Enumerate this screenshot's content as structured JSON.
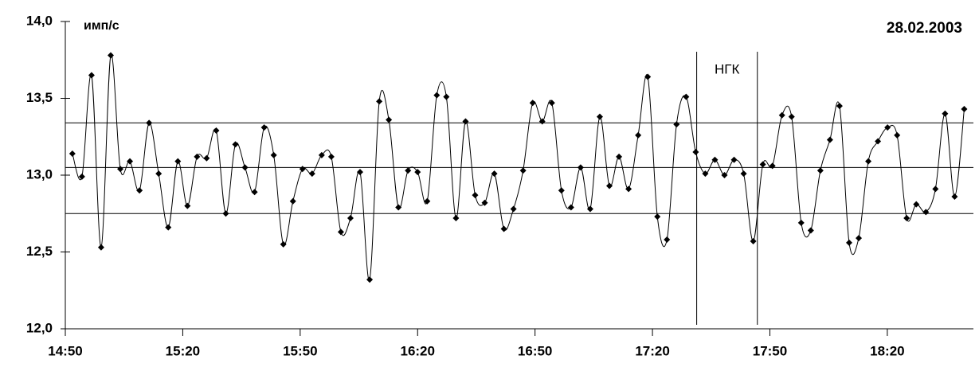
{
  "chart_data": {
    "type": "line",
    "y_label": "имп/с",
    "date": "28.02.2003",
    "annotation": "НГК",
    "xlim": [
      890,
      1122
    ],
    "xticks": [
      {
        "value": 890,
        "label": "14:50"
      },
      {
        "value": 920,
        "label": "15:20"
      },
      {
        "value": 950,
        "label": "15:50"
      },
      {
        "value": 980,
        "label": "16:20"
      },
      {
        "value": 1010,
        "label": "16:50"
      },
      {
        "value": 1040,
        "label": "17:20"
      },
      {
        "value": 1070,
        "label": "17:50"
      },
      {
        "value": 1100,
        "label": "18:20"
      }
    ],
    "ylim": [
      12,
      14
    ],
    "yticks": [
      {
        "value": 12,
        "label": "12,0"
      },
      {
        "value": 12.5,
        "label": "12,5"
      },
      {
        "value": 13,
        "label": "13,0"
      },
      {
        "value": 13.5,
        "label": "13,5"
      },
      {
        "value": 14,
        "label": "14,0"
      }
    ],
    "hlines": [
      13.34,
      13.05,
      12.75
    ],
    "vlines": [
      1051.3,
      1066.8
    ],
    "color": "#000000",
    "x": [
      891.8,
      894.25,
      896.7,
      899.15,
      901.6,
      904.05,
      906.5,
      908.95,
      911.4,
      913.85,
      916.3,
      918.75,
      921.2,
      923.65,
      926.1,
      928.55,
      931,
      933.45,
      935.9,
      938.35,
      940.8,
      943.25,
      945.7,
      948.15,
      950.6,
      953.05,
      955.5,
      957.95,
      960.4,
      962.85,
      965.3,
      967.75,
      970.2,
      972.65,
      975.1,
      977.55,
      980,
      982.45,
      984.9,
      987.35,
      989.8,
      992.25,
      994.7,
      997.15,
      999.6,
      1002.05,
      1004.5,
      1006.95,
      1009.4,
      1011.85,
      1014.3,
      1016.75,
      1019.2,
      1021.65,
      1024.1,
      1026.55,
      1029,
      1031.45,
      1033.9,
      1036.35,
      1038.8,
      1041.25,
      1043.7,
      1046.15,
      1048.6,
      1051.05,
      1053.5,
      1055.95,
      1058.4,
      1060.85,
      1063.3,
      1065.75,
      1068.2,
      1070.65,
      1073.1,
      1075.55,
      1078,
      1080.45,
      1082.9,
      1085.35,
      1087.8,
      1090.25,
      1092.7,
      1095.15,
      1097.6,
      1100.05,
      1102.5,
      1104.95,
      1107.4,
      1109.85,
      1112.3,
      1114.75,
      1117.2,
      1119.65
    ],
    "values": [
      13.14,
      12.99,
      13.65,
      12.53,
      13.78,
      13.04,
      13.09,
      12.9,
      13.34,
      13.01,
      12.66,
      13.09,
      12.8,
      13.12,
      13.11,
      13.29,
      12.75,
      13.2,
      13.05,
      12.89,
      13.31,
      13.13,
      12.55,
      12.83,
      13.04,
      13.01,
      13.13,
      13.12,
      12.63,
      12.72,
      13.02,
      12.32,
      13.48,
      13.36,
      12.79,
      13.03,
      13.02,
      12.83,
      13.52,
      13.51,
      12.72,
      13.35,
      12.87,
      12.82,
      13.01,
      12.65,
      12.78,
      13.03,
      13.47,
      13.35,
      13.47,
      12.9,
      12.79,
      13.05,
      12.78,
      13.38,
      12.93,
      13.12,
      12.91,
      13.26,
      13.64,
      12.73,
      12.58,
      13.33,
      13.51,
      13.15,
      13.01,
      13.1,
      13,
      13.1,
      13.01,
      12.57,
      13.07,
      13.06,
      13.39,
      13.38,
      12.69,
      12.64,
      13.03,
      13.23,
      13.45,
      12.56,
      12.59,
      13.09,
      13.22,
      13.31,
      13.26,
      12.72,
      12.81,
      12.76,
      12.91,
      13.4,
      12.86,
      13.43
    ]
  }
}
